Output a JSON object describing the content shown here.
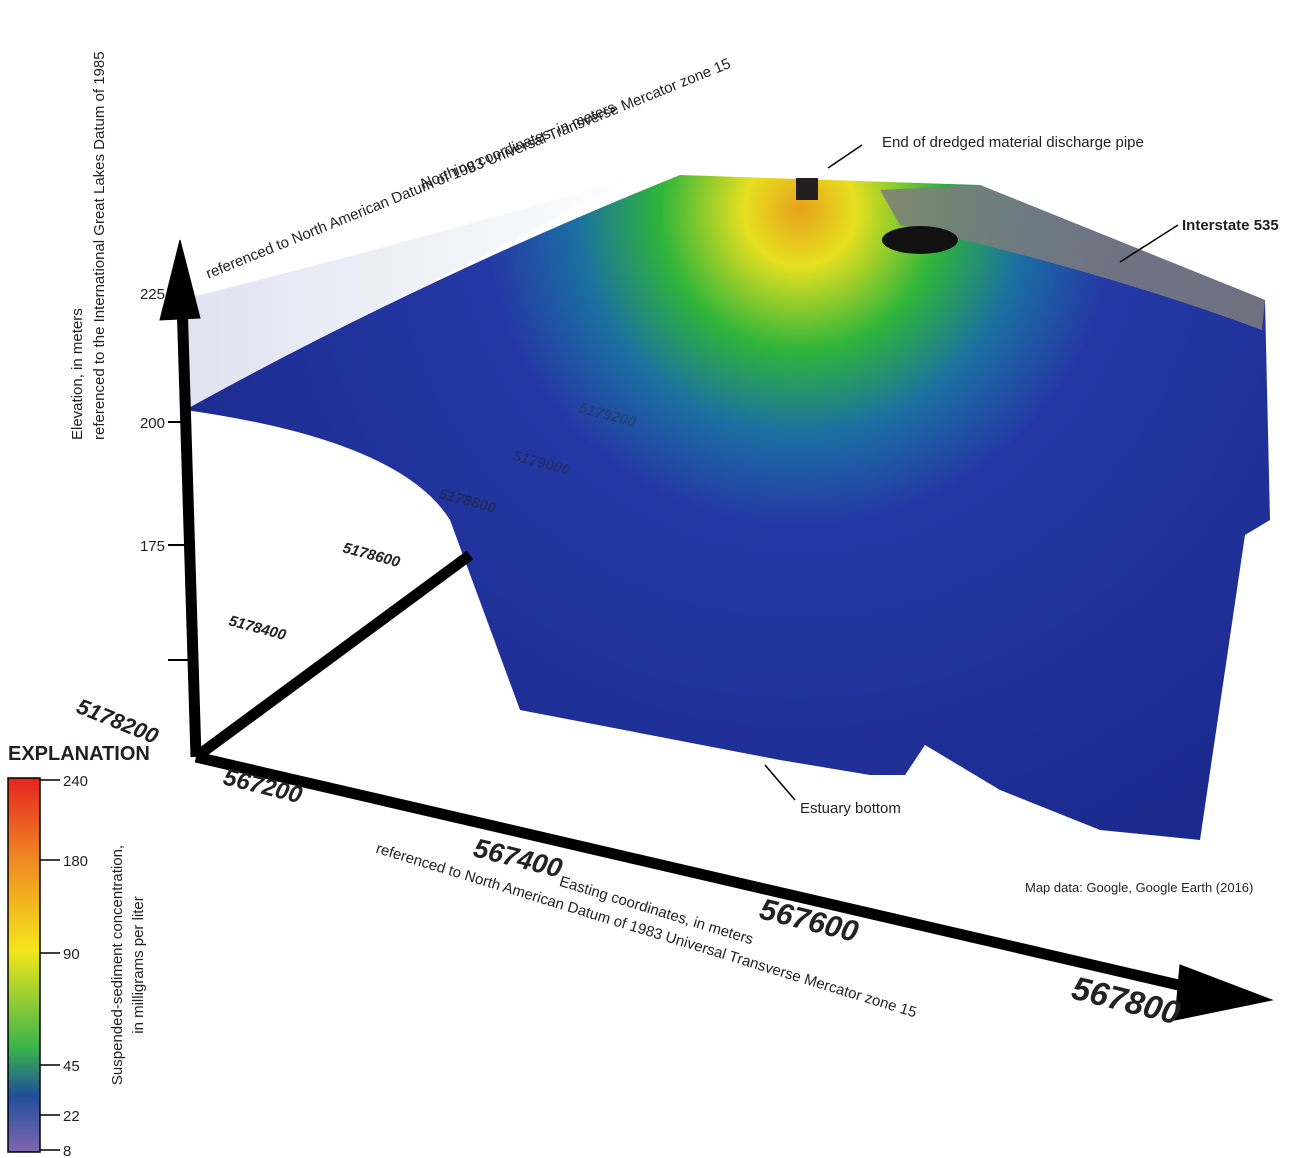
{
  "annotations": {
    "pipe": "End of dredged material discharge pipe",
    "interstate": "Interstate 535",
    "bottom": "Estuary bottom",
    "credit": "Map data: Google, Google Earth (2016)"
  },
  "axes": {
    "elevation": {
      "title": [
        "Elevation, in meters",
        "referenced to the International Great Lakes Datum of 1985"
      ],
      "ticks": [
        "225",
        "200",
        "175"
      ]
    },
    "northing": {
      "title": [
        "Northing coordinates, in meters",
        "referenced to North American Datum of 1983 Universal Transverse Mercator zone 15"
      ],
      "ticks": [
        "5178200",
        "5178400",
        "5178600",
        "5178800",
        "5179000",
        "5179200"
      ]
    },
    "easting": {
      "title": [
        "Easting coordinates, in meters",
        "referenced to North American Datum of 1983 Universal Transverse Mercator zone 15"
      ],
      "ticks": [
        "567200",
        "567400",
        "567600",
        "567800"
      ]
    }
  },
  "legend": {
    "title": "EXPLANATION",
    "label": [
      "Suspended-sediment concentration,",
      "in milligrams per liter"
    ],
    "ticks": [
      "240",
      "180",
      "90",
      "45",
      "22",
      "8"
    ]
  }
}
